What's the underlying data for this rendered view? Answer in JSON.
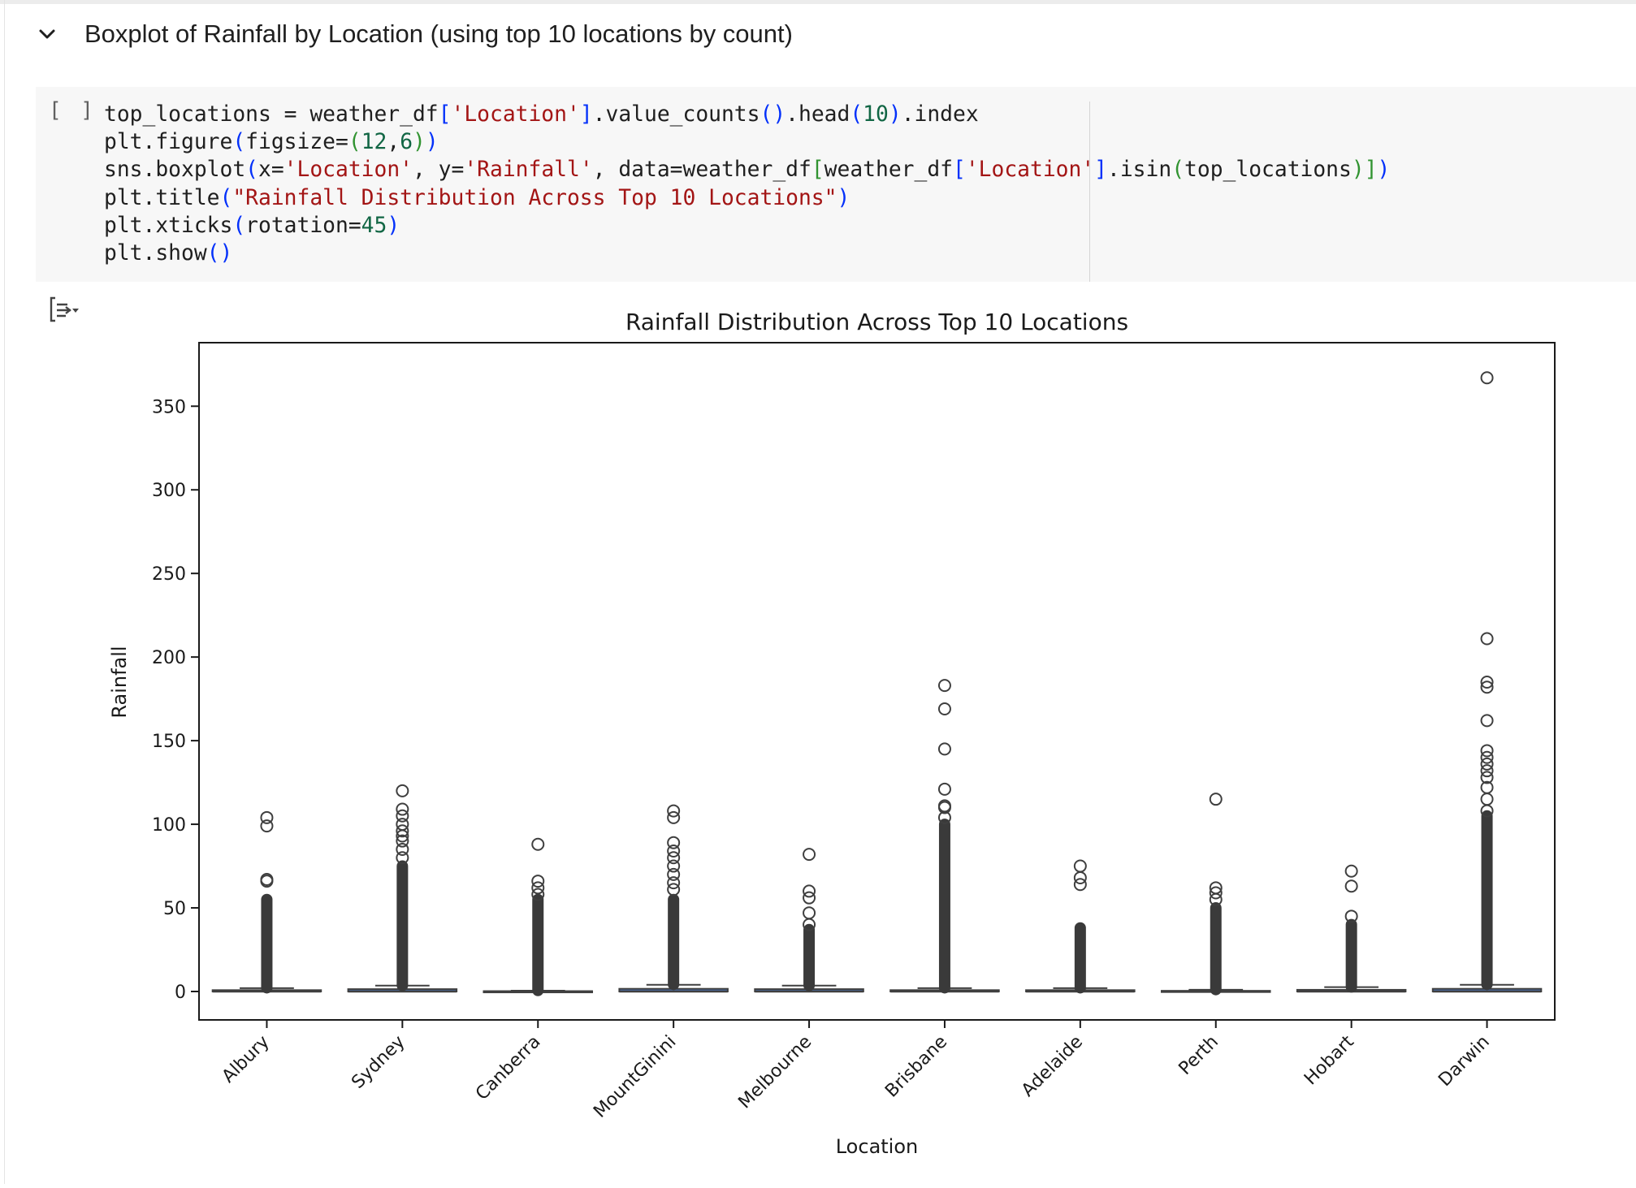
{
  "section": {
    "title": "Boxplot of Rainfall by Location (using top 10 locations by count)"
  },
  "cell": {
    "run_bracket": "[ ]",
    "code_lines": [
      [
        {
          "t": "top_locations = weather_df",
          "c": ""
        },
        {
          "t": "[",
          "c": "p1"
        },
        {
          "t": "'Location'",
          "c": "str"
        },
        {
          "t": "]",
          "c": "p1"
        },
        {
          "t": ".value_counts",
          "c": ""
        },
        {
          "t": "()",
          "c": "p1"
        },
        {
          "t": ".head",
          "c": ""
        },
        {
          "t": "(",
          "c": "p1"
        },
        {
          "t": "10",
          "c": "num"
        },
        {
          "t": ")",
          "c": "p1"
        },
        {
          "t": ".index",
          "c": ""
        }
      ],
      [
        {
          "t": "plt.figure",
          "c": ""
        },
        {
          "t": "(",
          "c": "p1"
        },
        {
          "t": "figsize=",
          "c": ""
        },
        {
          "t": "(",
          "c": "p2"
        },
        {
          "t": "12",
          "c": "num"
        },
        {
          "t": ",",
          "c": ""
        },
        {
          "t": "6",
          "c": "num"
        },
        {
          "t": ")",
          "c": "p2"
        },
        {
          "t": ")",
          "c": "p1"
        }
      ],
      [
        {
          "t": "sns.boxplot",
          "c": ""
        },
        {
          "t": "(",
          "c": "p1"
        },
        {
          "t": "x=",
          "c": ""
        },
        {
          "t": "'Location'",
          "c": "str"
        },
        {
          "t": ", y=",
          "c": ""
        },
        {
          "t": "'Rainfall'",
          "c": "str"
        },
        {
          "t": ", data=weather_df",
          "c": ""
        },
        {
          "t": "[",
          "c": "p2"
        },
        {
          "t": "weather_df",
          "c": ""
        },
        {
          "t": "[",
          "c": "p1"
        },
        {
          "t": "'Location'",
          "c": "str"
        },
        {
          "t": "]",
          "c": "p1"
        },
        {
          "t": ".isin",
          "c": ""
        },
        {
          "t": "(",
          "c": "p2"
        },
        {
          "t": "top_locations",
          "c": ""
        },
        {
          "t": ")",
          "c": "p2"
        },
        {
          "t": "]",
          "c": "p2"
        },
        {
          "t": ")",
          "c": "p1"
        }
      ],
      [
        {
          "t": "plt.title",
          "c": ""
        },
        {
          "t": "(",
          "c": "p1"
        },
        {
          "t": "\"Rainfall Distribution Across Top 10 Locations\"",
          "c": "str"
        },
        {
          "t": ")",
          "c": "p1"
        }
      ],
      [
        {
          "t": "plt.xticks",
          "c": ""
        },
        {
          "t": "(",
          "c": "p1"
        },
        {
          "t": "rotation=",
          "c": ""
        },
        {
          "t": "45",
          "c": "num"
        },
        {
          "t": ")",
          "c": "p1"
        }
      ],
      [
        {
          "t": "plt.show",
          "c": ""
        },
        {
          "t": "()",
          "c": "p1"
        }
      ]
    ]
  },
  "output": {
    "toggle_icon": "output-collapse-icon"
  },
  "chart_data": {
    "type": "box",
    "title": "Rainfall Distribution Across Top 10 Locations",
    "xlabel": "Location",
    "ylabel": "Rainfall",
    "ylim": [
      -17,
      388
    ],
    "yticks": [
      0,
      50,
      100,
      150,
      200,
      250,
      300,
      350
    ],
    "grid": false,
    "box_color": "#4c72b0",
    "categories": [
      "Albury",
      "Sydney",
      "Canberra",
      "MountGinini",
      "Melbourne",
      "Brisbane",
      "Adelaide",
      "Perth",
      "Hobart",
      "Darwin"
    ],
    "boxes": [
      {
        "q1": 0,
        "median": 0,
        "q3": 0.8,
        "whisker_high": 2.0,
        "outlier_min": 2.2,
        "dense_to": 55,
        "outliers": [
          66,
          67,
          99,
          104
        ]
      },
      {
        "q1": 0,
        "median": 0,
        "q3": 1.4,
        "whisker_high": 3.5,
        "outlier_min": 3.6,
        "dense_to": 75,
        "outliers": [
          80,
          85,
          90,
          93,
          96,
          100,
          105,
          109,
          120
        ]
      },
      {
        "q1": 0,
        "median": 0,
        "q3": 0.2,
        "whisker_high": 0.5,
        "outlier_min": 0.6,
        "dense_to": 55,
        "outliers": [
          58,
          62,
          66,
          88
        ]
      },
      {
        "q1": 0,
        "median": 0,
        "q3": 1.6,
        "whisker_high": 4.0,
        "outlier_min": 4.2,
        "dense_to": 55,
        "outliers": [
          61,
          65,
          70,
          75,
          80,
          84,
          89,
          104,
          108
        ]
      },
      {
        "q1": 0,
        "median": 0,
        "q3": 1.4,
        "whisker_high": 3.5,
        "outlier_min": 3.6,
        "dense_to": 37,
        "outliers": [
          40,
          47,
          56,
          60,
          82
        ]
      },
      {
        "q1": 0,
        "median": 0,
        "q3": 0.8,
        "whisker_high": 2.0,
        "outlier_min": 2.2,
        "dense_to": 100,
        "outliers": [
          104,
          110,
          111,
          121,
          145,
          169,
          183
        ]
      },
      {
        "q1": 0,
        "median": 0,
        "q3": 0.8,
        "whisker_high": 2.0,
        "outlier_min": 2.2,
        "dense_to": 38,
        "outliers": [
          64,
          68,
          75
        ]
      },
      {
        "q1": 0,
        "median": 0,
        "q3": 0.4,
        "whisker_high": 1.0,
        "outlier_min": 1.1,
        "dense_to": 50,
        "outliers": [
          55,
          59,
          62,
          115
        ]
      },
      {
        "q1": 0,
        "median": 0,
        "q3": 1.0,
        "whisker_high": 2.6,
        "outlier_min": 2.7,
        "dense_to": 40,
        "outliers": [
          45,
          63,
          72
        ]
      },
      {
        "q1": 0,
        "median": 0,
        "q3": 1.6,
        "whisker_high": 4.0,
        "outlier_min": 4.2,
        "dense_to": 105,
        "outliers": [
          108,
          115,
          122,
          128,
          132,
          136,
          140,
          144,
          162,
          182,
          185,
          211,
          367
        ]
      }
    ]
  }
}
